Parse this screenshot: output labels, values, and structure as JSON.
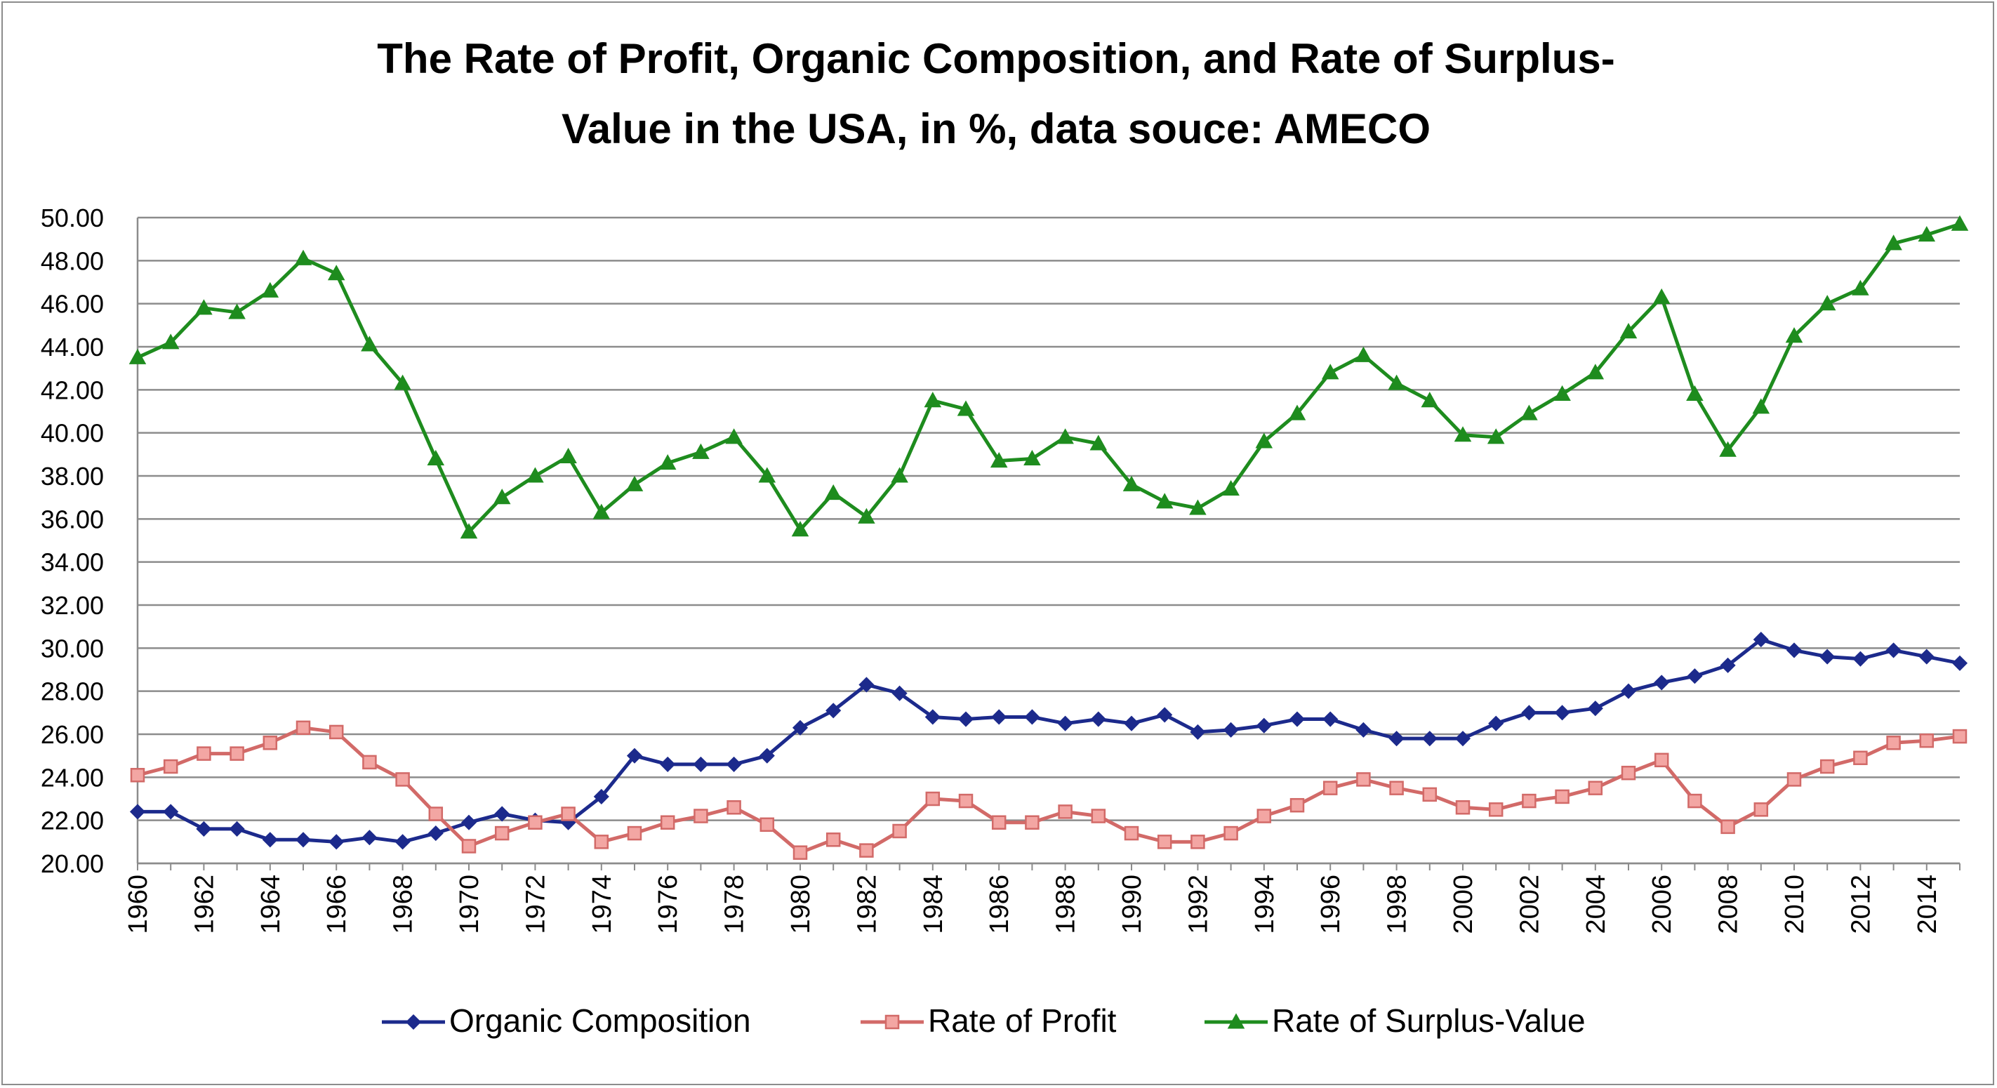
{
  "chart_data": {
    "type": "line",
    "title_lines": [
      "The Rate of Profit, Organic Composition, and Rate of Surplus-",
      "Value in the USA, in %, data souce:  AMECO"
    ],
    "xlabel": "",
    "ylabel": "",
    "ylim": [
      20,
      50
    ],
    "ytick_step": 2,
    "ytick_labels": [
      "20.00",
      "22.00",
      "24.00",
      "26.00",
      "28.00",
      "30.00",
      "32.00",
      "34.00",
      "36.00",
      "38.00",
      "40.00",
      "42.00",
      "44.00",
      "46.00",
      "48.00",
      "50.00"
    ],
    "x": [
      1960,
      1961,
      1962,
      1963,
      1964,
      1965,
      1966,
      1967,
      1968,
      1969,
      1970,
      1971,
      1972,
      1973,
      1974,
      1975,
      1976,
      1977,
      1978,
      1979,
      1980,
      1981,
      1982,
      1983,
      1984,
      1985,
      1986,
      1987,
      1988,
      1989,
      1990,
      1991,
      1992,
      1993,
      1994,
      1995,
      1996,
      1997,
      1998,
      1999,
      2000,
      2001,
      2002,
      2003,
      2004,
      2005,
      2006,
      2007,
      2008,
      2009,
      2010,
      2011,
      2012,
      2013,
      2014,
      2015
    ],
    "xtick_labels": [
      "1960",
      "1962",
      "1964",
      "1966",
      "1968",
      "1970",
      "1972",
      "1974",
      "1976",
      "1978",
      "1980",
      "1982",
      "1984",
      "1986",
      "1988",
      "1990",
      "1992",
      "1994",
      "1996",
      "1998",
      "2000",
      "2002",
      "2004",
      "2006",
      "2008",
      "2010",
      "2012",
      "2014"
    ],
    "grid": true,
    "legend_position": "bottom",
    "series": [
      {
        "name": "Organic Composition",
        "color": "#1c2a8c",
        "marker": "diamond",
        "values": [
          22.4,
          22.4,
          21.6,
          21.6,
          21.1,
          21.1,
          21.0,
          21.2,
          21.0,
          21.4,
          21.9,
          22.3,
          22.0,
          21.9,
          23.1,
          25.0,
          24.6,
          24.6,
          24.6,
          25.0,
          26.3,
          27.1,
          28.3,
          27.9,
          26.8,
          26.7,
          26.8,
          26.8,
          26.5,
          26.7,
          26.5,
          26.9,
          26.1,
          26.2,
          26.4,
          26.7,
          26.7,
          26.2,
          25.8,
          25.8,
          25.8,
          26.5,
          27.0,
          27.0,
          27.2,
          28.0,
          28.4,
          28.7,
          29.2,
          30.4,
          29.9,
          29.6,
          29.5,
          29.9,
          29.6,
          29.3
        ]
      },
      {
        "name": "Rate of Profit",
        "color": "#d26a68",
        "marker": "square",
        "values": [
          24.1,
          24.5,
          25.1,
          25.1,
          25.6,
          26.3,
          26.1,
          24.7,
          23.9,
          22.3,
          20.8,
          21.4,
          21.9,
          22.3,
          21.0,
          21.4,
          21.9,
          22.2,
          22.6,
          21.8,
          20.5,
          21.1,
          20.6,
          21.5,
          23.0,
          22.9,
          21.9,
          21.9,
          22.4,
          22.2,
          21.4,
          21.0,
          21.0,
          21.4,
          22.2,
          22.7,
          23.5,
          23.9,
          23.5,
          23.2,
          22.6,
          22.5,
          22.9,
          23.1,
          23.5,
          24.2,
          24.8,
          22.9,
          21.7,
          22.5,
          23.9,
          24.5,
          24.9,
          25.6,
          25.7,
          25.9
        ]
      },
      {
        "name": "Rate of Surplus-Value",
        "color": "#1e8c1e",
        "marker": "triangle",
        "values": [
          43.5,
          44.2,
          45.8,
          45.6,
          46.6,
          48.1,
          47.4,
          44.1,
          42.3,
          38.8,
          35.4,
          37.0,
          38.0,
          38.9,
          36.3,
          37.6,
          38.6,
          39.1,
          39.8,
          38.0,
          35.5,
          37.2,
          36.1,
          38.0,
          41.5,
          41.1,
          38.7,
          38.8,
          39.8,
          39.5,
          37.6,
          36.8,
          36.5,
          37.4,
          39.6,
          40.9,
          42.8,
          43.6,
          42.3,
          41.5,
          39.9,
          39.8,
          40.9,
          41.8,
          42.8,
          44.7,
          46.3,
          41.8,
          39.2,
          41.2,
          44.5,
          46.0,
          46.7,
          48.8,
          49.2,
          49.7
        ]
      }
    ]
  }
}
